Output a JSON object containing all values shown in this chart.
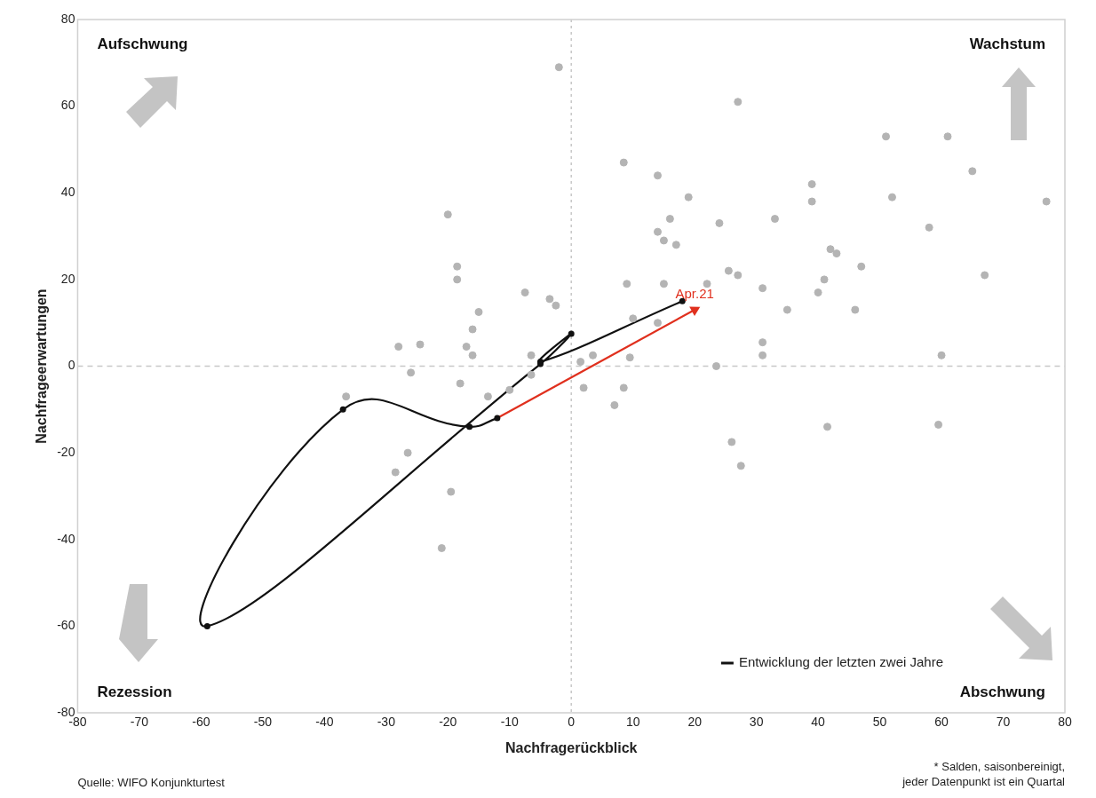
{
  "chart_data": {
    "type": "scatter",
    "xlabel": "Nachfragerückblick",
    "ylabel": "Nachfrageerwartungen",
    "xlim": [
      -80,
      80
    ],
    "xticks": [
      -80,
      -70,
      -60,
      -50,
      -40,
      -30,
      -20,
      -10,
      0,
      10,
      20,
      30,
      40,
      50,
      60,
      70,
      80
    ],
    "ylim": [
      -80,
      80
    ],
    "yticks": [
      -80,
      -60,
      -40,
      -20,
      0,
      20,
      40,
      60,
      80
    ],
    "grid": false,
    "marker": "circle",
    "legend": "bottom right",
    "ref_lines": [
      {
        "axis": "x",
        "value": 0,
        "color": "#c8c8c8",
        "line_style": "dotted"
      },
      {
        "axis": "y",
        "value": 0,
        "color": "#c8c8c8",
        "line_style": "dashed"
      }
    ],
    "series": [
      {
        "type": "scatter",
        "color": "#b4b4b4",
        "x": [
          -2,
          27,
          51,
          61,
          65,
          8.5,
          14,
          39,
          77,
          39,
          52,
          19,
          16,
          33,
          24,
          14,
          15,
          58,
          -20,
          -18.5,
          -18.5,
          42,
          43,
          25.5,
          17,
          47,
          67,
          9,
          27,
          41,
          31,
          40,
          35,
          46,
          -7.5,
          -3.5,
          -2.5,
          -15,
          -16,
          -16,
          -17,
          -28,
          -24.5,
          -26,
          15,
          22,
          10,
          14,
          31,
          31,
          60,
          23.5,
          9.5,
          3.5,
          1.5,
          2,
          8.5,
          7,
          26,
          27.5,
          41.5,
          59.5,
          -18,
          -36.5,
          -13.5,
          -10,
          -6.5,
          -26.5,
          -28.5,
          -19.5,
          -21,
          -6.5
        ],
        "values": [
          69,
          61,
          53,
          53,
          45,
          47,
          44,
          42,
          38,
          38,
          39,
          39,
          34,
          34,
          33,
          31,
          29,
          32,
          35,
          23,
          20,
          27,
          26,
          22,
          28,
          23,
          21,
          19,
          21,
          20,
          18,
          17,
          13,
          13,
          17,
          15.5,
          14,
          12.5,
          8.5,
          2.5,
          4.5,
          4.5,
          5,
          -1.5,
          19,
          19,
          11,
          10,
          5.5,
          2.5,
          2.5,
          0,
          2,
          2.5,
          1,
          -5,
          -5,
          -9,
          -17.5,
          -23,
          -14,
          -13.5,
          -4,
          -7,
          -7,
          -5.5,
          -2,
          -20,
          -24.5,
          -29,
          -42,
          2.5
        ]
      },
      {
        "type": "line",
        "name": "Entwicklung der letzten zwei Jahre",
        "color": "#111111",
        "x": [
          18,
          -5,
          0,
          -5,
          -59,
          -37,
          -16.5,
          -12
        ],
        "values": [
          15,
          1,
          7.5,
          0.5,
          -60,
          -10,
          -14,
          -12
        ]
      },
      {
        "type": "line",
        "color": "#e0301e",
        "marker": "triangle",
        "x": [
          -12,
          20
        ],
        "values": [
          -12,
          13
        ]
      }
    ],
    "annotations": [
      "Aufschwung",
      "Wachstum",
      "Rezession",
      "Abschwung",
      {
        "text": "Apr.21",
        "x": 20,
        "y": 13
      },
      "Quelle: WIFO Konjunkturtest",
      "* Salden, saisonbereinigt, jeder Datenpunkt ist ein Quartal"
    ]
  }
}
